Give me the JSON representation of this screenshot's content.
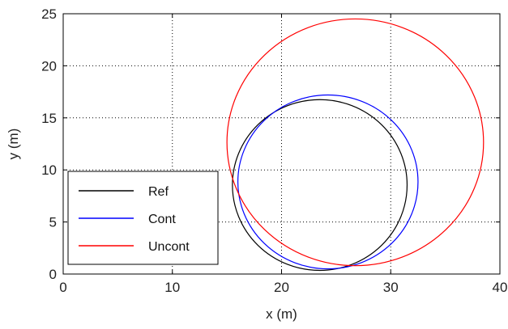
{
  "chart_data": {
    "type": "line",
    "title": "",
    "xlabel": "x (m)",
    "ylabel": "y (m)",
    "xlim": [
      0,
      40
    ],
    "ylim": [
      0,
      25
    ],
    "xticks": [
      "0",
      "10",
      "20",
      "30",
      "40"
    ],
    "yticks": [
      "0",
      "5",
      "10",
      "15",
      "20",
      "25"
    ],
    "grid": true,
    "grid_style": "dotted",
    "legend_position": "bottom-left",
    "series": [
      {
        "name": "Ref",
        "color": "#000000",
        "circle": {
          "cx": 23.5,
          "cy": 8.55,
          "rx": 8.0,
          "ry": 8.2
        }
      },
      {
        "name": "Cont",
        "color": "#0000ff",
        "circle": {
          "cx": 24.25,
          "cy": 8.85,
          "rx": 8.25,
          "ry": 8.35
        }
      },
      {
        "name": "Uncont",
        "color": "#ff0000",
        "circle": {
          "cx": 26.75,
          "cy": 12.65,
          "rx": 11.75,
          "ry": 11.85
        }
      }
    ]
  }
}
